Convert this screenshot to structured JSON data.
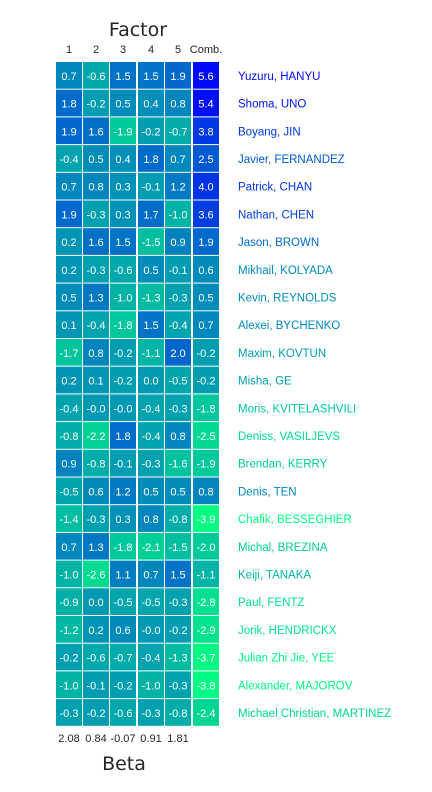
{
  "chart_data": {
    "type": "heatmap",
    "title": "Factor",
    "xlabel": "Beta",
    "columns": [
      "1",
      "2",
      "3",
      "4",
      "5",
      "Comb."
    ],
    "beta": [
      "2.08",
      "0.84",
      "-0.07",
      "0.91",
      "1.81"
    ],
    "colors": {
      "high": "#0000ff",
      "low": "#00ff80"
    },
    "color_range": [
      -4.0,
      6.0
    ],
    "rows": [
      {
        "name": "Yuzuru, HANYU",
        "values": [
          "0.7",
          "-0.6",
          "1.5",
          "1.5",
          "1.9",
          "5.6"
        ]
      },
      {
        "name": "Shoma, UNO",
        "values": [
          "1.8",
          "-0.2",
          "0.5",
          "0.4",
          "0.8",
          "5.4"
        ]
      },
      {
        "name": "Boyang, JIN",
        "values": [
          "1.9",
          "1.6",
          "-1.9",
          "-0.2",
          "-0.7",
          "3.8"
        ]
      },
      {
        "name": "Javier, FERNANDEZ",
        "values": [
          "-0.4",
          "0.5",
          "0.4",
          "1.8",
          "0.7",
          "2.5"
        ]
      },
      {
        "name": "Patrick, CHAN",
        "values": [
          "0.7",
          "0.8",
          "0.3",
          "-0.1",
          "1.2",
          "4.0"
        ]
      },
      {
        "name": "Nathan, CHEN",
        "values": [
          "1.9",
          "-0.3",
          "0.3",
          "1.7",
          "-1.0",
          "3.6"
        ]
      },
      {
        "name": "Jason, BROWN",
        "values": [
          "0.2",
          "1.6",
          "1.5",
          "-1.5",
          "0.9",
          "1.9"
        ]
      },
      {
        "name": "Mikhail, KOLYADA",
        "values": [
          "0.2",
          "-0.3",
          "-0.6",
          "0.5",
          "-0.1",
          "0.6"
        ]
      },
      {
        "name": "Kevin, REYNOLDS",
        "values": [
          "0.5",
          "1.3",
          "-1.0",
          "-1.3",
          "-0.3",
          "0.5"
        ]
      },
      {
        "name": "Alexei, BYCHENKO",
        "values": [
          "0.1",
          "-0.4",
          "-1.8",
          "1.5",
          "-0.4",
          "0.7"
        ]
      },
      {
        "name": "Maxim, KOVTUN",
        "values": [
          "-1.7",
          "0.8",
          "-0.2",
          "-1.1",
          "2.0",
          "-0.2"
        ]
      },
      {
        "name": "Misha, GE",
        "values": [
          "0.2",
          "0.1",
          "-0.2",
          "0.0",
          "-0.5",
          "-0.2"
        ]
      },
      {
        "name": "Moris, KVITELASHVILI",
        "values": [
          "-0.4",
          "-0.0",
          "-0.0",
          "-0.4",
          "-0.3",
          "-1.8"
        ]
      },
      {
        "name": "Deniss, VASILJEVS",
        "values": [
          "-0.8",
          "-2.2",
          "1.8",
          "-0.4",
          "0.8",
          "-2.5"
        ]
      },
      {
        "name": "Brendan, KERRY",
        "values": [
          "0.9",
          "-0.8",
          "-0.1",
          "-0.3",
          "-1.6",
          "-1.9"
        ]
      },
      {
        "name": "Denis, TEN",
        "values": [
          "-0.5",
          "0.6",
          "1.2",
          "0.5",
          "0.5",
          "0.8"
        ]
      },
      {
        "name": "Chafik, BESSEGHIER",
        "values": [
          "-1.4",
          "-0.3",
          "0.3",
          "0.8",
          "-0.8",
          "-3.9"
        ]
      },
      {
        "name": "Michal, BREZINA",
        "values": [
          "0.7",
          "1.3",
          "-1.8",
          "-2.1",
          "-1.5",
          "-2.0"
        ]
      },
      {
        "name": "Keiji, TANAKA",
        "values": [
          "-1.0",
          "-2.6",
          "1.1",
          "0.7",
          "1.5",
          "-1.1"
        ]
      },
      {
        "name": "Paul, FENTZ",
        "values": [
          "-0.9",
          "0.0",
          "-0.5",
          "-0.5",
          "-0.3",
          "-2.8"
        ]
      },
      {
        "name": "Jorik, HENDRICKX",
        "values": [
          "-1.2",
          "0.2",
          "0.6",
          "-0.0",
          "-0.2",
          "-2.9"
        ]
      },
      {
        "name": "Julian Zhi Jie, YEE",
        "values": [
          "-0.2",
          "-0.6",
          "-0.7",
          "-0.4",
          "-1.3",
          "-3.7"
        ]
      },
      {
        "name": "Alexander, MAJOROV",
        "values": [
          "-1.0",
          "-0.1",
          "-0.2",
          "-1.0",
          "-0.3",
          "-3.8"
        ]
      },
      {
        "name": "Michael Christian, MARTINEZ",
        "values": [
          "-0.3",
          "-0.2",
          "-0.6",
          "-0.3",
          "-0.8",
          "-2.4"
        ]
      }
    ]
  }
}
